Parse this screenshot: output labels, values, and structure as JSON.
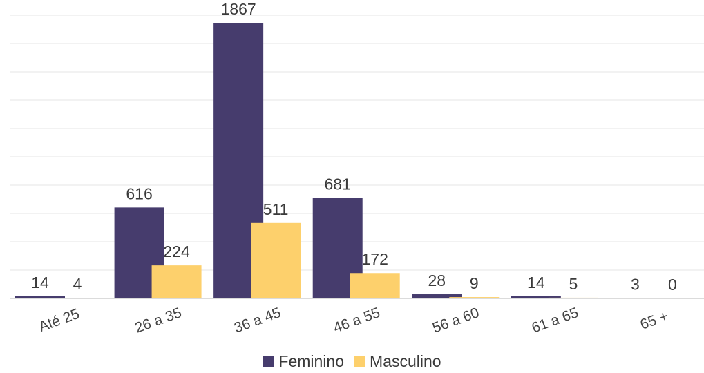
{
  "chart_data": {
    "type": "bar",
    "title": "",
    "xlabel": "",
    "ylabel": "",
    "categories": [
      "Até 25",
      "26 a 35",
      "36 a 45",
      "46 a 55",
      "56 a 60",
      "61 a 65",
      "65 +"
    ],
    "series": [
      {
        "name": "Feminino",
        "values": [
          14,
          616,
          1867,
          681,
          28,
          14,
          3
        ],
        "color": "#463c6d"
      },
      {
        "name": "Masculino",
        "values": [
          4,
          224,
          511,
          172,
          9,
          5,
          0
        ],
        "color": "#fdd06c"
      }
    ],
    "ylim": [
      0,
      1900
    ],
    "grid": true,
    "legend_position": "bottom",
    "data_labels": true,
    "x_tick_rotation_deg": -20
  }
}
